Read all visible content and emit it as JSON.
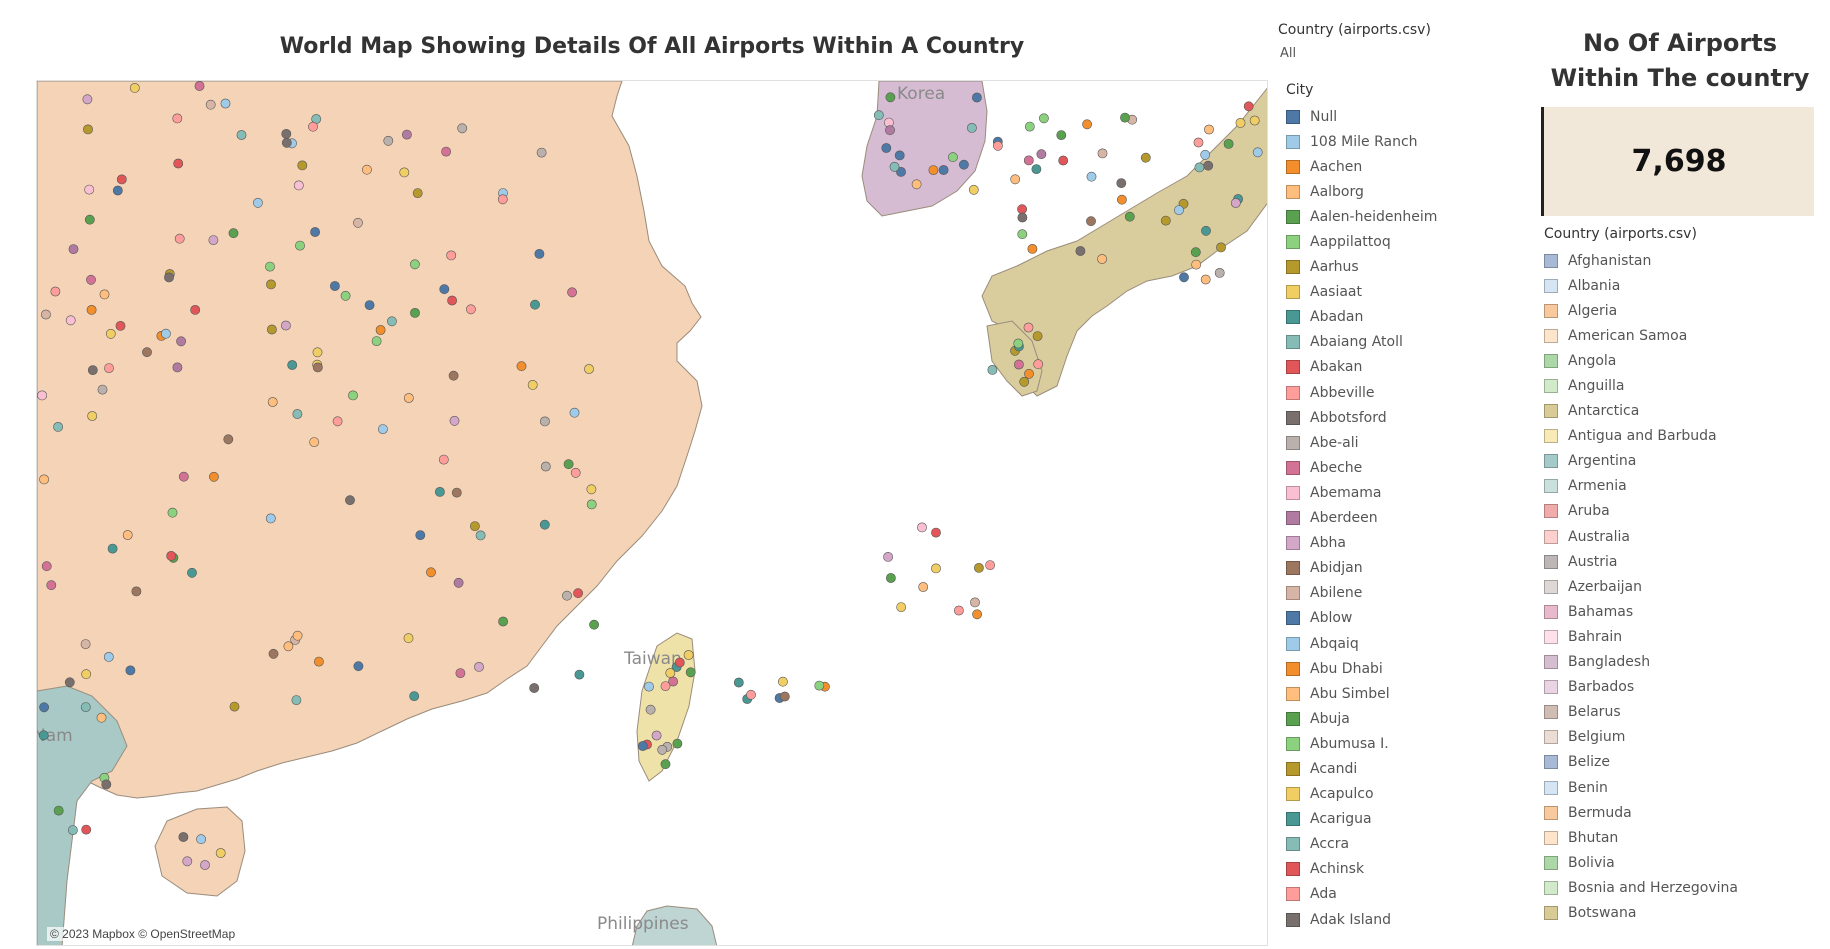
{
  "dashboard": {
    "title": "World Map Showing Details Of All Airports Within A Country",
    "map_attribution": "© 2023 Mapbox © OpenStreetMap"
  },
  "filter": {
    "title": "Country (airports.csv)",
    "value": "All"
  },
  "map_labels": {
    "korea": "Korea",
    "taiwan": "Taiwan",
    "philippines": "Philippines",
    "vietnam": "Nam"
  },
  "city_legend": {
    "title": "City",
    "items": [
      {
        "label": "Null",
        "color": "#4e79a7"
      },
      {
        "label": "108 Mile Ranch",
        "color": "#a0cbe8"
      },
      {
        "label": "Aachen",
        "color": "#f28e2b"
      },
      {
        "label": "Aalborg",
        "color": "#ffbe7d"
      },
      {
        "label": "Aalen-heidenheim",
        "color": "#59a14f"
      },
      {
        "label": "Aappilattoq",
        "color": "#8cd17d"
      },
      {
        "label": "Aarhus",
        "color": "#b6992d"
      },
      {
        "label": "Aasiaat",
        "color": "#f1ce63"
      },
      {
        "label": "Abadan",
        "color": "#499894"
      },
      {
        "label": "Abaiang Atoll",
        "color": "#86bcb6"
      },
      {
        "label": "Abakan",
        "color": "#e15759"
      },
      {
        "label": "Abbeville",
        "color": "#ff9d9a"
      },
      {
        "label": "Abbotsford",
        "color": "#79706e"
      },
      {
        "label": "Abe-ali",
        "color": "#bab0ac"
      },
      {
        "label": "Abeche",
        "color": "#d37295"
      },
      {
        "label": "Abemama",
        "color": "#fabfd2"
      },
      {
        "label": "Aberdeen",
        "color": "#b07aa1"
      },
      {
        "label": "Abha",
        "color": "#d4a6c8"
      },
      {
        "label": "Abidjan",
        "color": "#9d7660"
      },
      {
        "label": "Abilene",
        "color": "#d7b5a6"
      },
      {
        "label": "Ablow",
        "color": "#4e79a7"
      },
      {
        "label": "Abqaiq",
        "color": "#a0cbe8"
      },
      {
        "label": "Abu Dhabi",
        "color": "#f28e2b"
      },
      {
        "label": "Abu Simbel",
        "color": "#ffbe7d"
      },
      {
        "label": "Abuja",
        "color": "#59a14f"
      },
      {
        "label": "Abumusa I.",
        "color": "#8cd17d"
      },
      {
        "label": "Acandi",
        "color": "#b6992d"
      },
      {
        "label": "Acapulco",
        "color": "#f1ce63"
      },
      {
        "label": "Acarigua",
        "color": "#499894"
      },
      {
        "label": "Accra",
        "color": "#86bcb6"
      },
      {
        "label": "Achinsk",
        "color": "#e15759"
      },
      {
        "label": "Ada",
        "color": "#ff9d9a"
      },
      {
        "label": "Adak Island",
        "color": "#79706e"
      }
    ]
  },
  "kpi": {
    "title": "No Of Airports Within The country",
    "value": "7,698"
  },
  "country_legend": {
    "title": "Country (airports.csv)",
    "items": [
      {
        "label": "Afghanistan",
        "color": "#a8b9d6"
      },
      {
        "label": "Albania",
        "color": "#d5e5f3"
      },
      {
        "label": "Algeria",
        "color": "#f8c99d"
      },
      {
        "label": "American Samoa",
        "color": "#fde4cb"
      },
      {
        "label": "Angola",
        "color": "#acd8a7"
      },
      {
        "label": "Anguilla",
        "color": "#d1ebca"
      },
      {
        "label": "Antarctica",
        "color": "#d9cb96"
      },
      {
        "label": "Antigua and Barbuda",
        "color": "#f8eab7"
      },
      {
        "label": "Argentina",
        "color": "#a4cbc9"
      },
      {
        "label": "Armenia",
        "color": "#c9e0dd"
      },
      {
        "label": "Aruba",
        "color": "#f0abab"
      },
      {
        "label": "Australia",
        "color": "#fdd0ce"
      },
      {
        "label": "Austria",
        "color": "#bcb7b6"
      },
      {
        "label": "Azerbaijan",
        "color": "#ddd8d5"
      },
      {
        "label": "Bahamas",
        "color": "#e8b8cb"
      },
      {
        "label": "Bahrain",
        "color": "#fde0ea"
      },
      {
        "label": "Bangladesh",
        "color": "#d6bed1"
      },
      {
        "label": "Barbados",
        "color": "#ead4e4"
      },
      {
        "label": "Belarus",
        "color": "#cfbcb2"
      },
      {
        "label": "Belgium",
        "color": "#ebdcd4"
      },
      {
        "label": "Belize",
        "color": "#a8b9d6"
      },
      {
        "label": "Benin",
        "color": "#d5e5f3"
      },
      {
        "label": "Bermuda",
        "color": "#f8c99d"
      },
      {
        "label": "Bhutan",
        "color": "#fde4cb"
      },
      {
        "label": "Bolivia",
        "color": "#acd8a7"
      },
      {
        "label": "Bosnia and Herzegovina",
        "color": "#d1ebca"
      },
      {
        "label": "Botswana",
        "color": "#d9cb96"
      }
    ]
  },
  "map_colors": {
    "china": "#f4d3b6",
    "japan": "#d9cd9e",
    "korea": "#d5bcd2",
    "taiwan": "#efe2a8",
    "vietnam": "#a8c9c6",
    "philippines": "#bfd5d3",
    "water": "#ffffff",
    "border": "#9a8c7c"
  }
}
